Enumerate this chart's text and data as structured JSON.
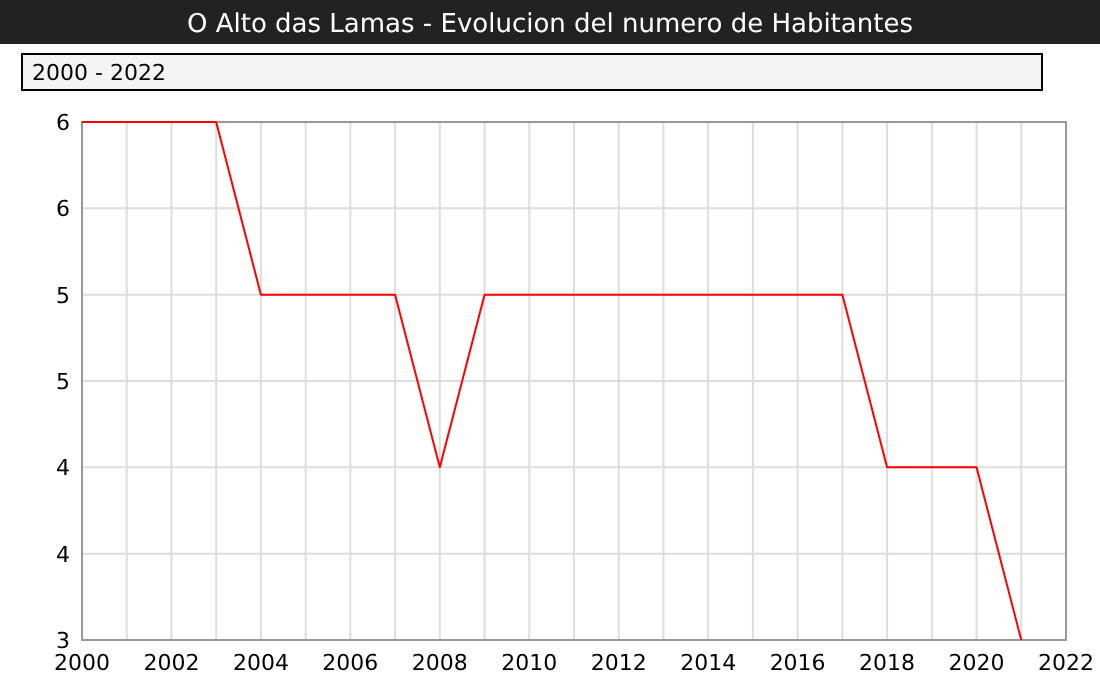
{
  "chart_data": {
    "type": "line",
    "title": "O Alto das Lamas - Evolucion del numero de Habitantes",
    "annotations": [
      "2000 - 2022"
    ],
    "x": [
      2000,
      2001,
      2002,
      2003,
      2004,
      2005,
      2006,
      2007,
      2008,
      2009,
      2010,
      2011,
      2012,
      2013,
      2014,
      2015,
      2016,
      2017,
      2018,
      2019,
      2020,
      2021
    ],
    "series": [
      {
        "color": "#ff0000",
        "values": [
          6,
          6,
          6,
          6,
          5,
          5,
          5,
          5,
          4,
          5,
          5,
          5,
          5,
          5,
          5,
          5,
          5,
          5,
          4,
          4,
          4,
          3
        ]
      }
    ],
    "xlim": [
      2000,
      2022
    ],
    "xticks": [
      2000,
      {
        "value": 2001,
        "label": null
      },
      2002,
      {
        "value": 2003,
        "label": null
      },
      2004,
      {
        "value": 2005,
        "label": null
      },
      2006,
      {
        "value": 2007,
        "label": null
      },
      2008,
      {
        "value": 2009,
        "label": null
      },
      2010,
      {
        "value": 2011,
        "label": null
      },
      2012,
      {
        "value": 2013,
        "label": null
      },
      2014,
      {
        "value": 2015,
        "label": null
      },
      2016,
      {
        "value": 2017,
        "label": null
      },
      2018,
      {
        "value": 2019,
        "label": null
      },
      2020,
      {
        "value": 2021,
        "label": null
      },
      2022
    ],
    "ylim": [
      3,
      6
    ],
    "yticks": [
      3,
      {
        "value": 3.5,
        "label": "4"
      },
      4,
      {
        "value": 4.5,
        "label": "5"
      },
      5,
      {
        "value": 5.5,
        "label": "6"
      },
      6
    ],
    "grid": true
  }
}
